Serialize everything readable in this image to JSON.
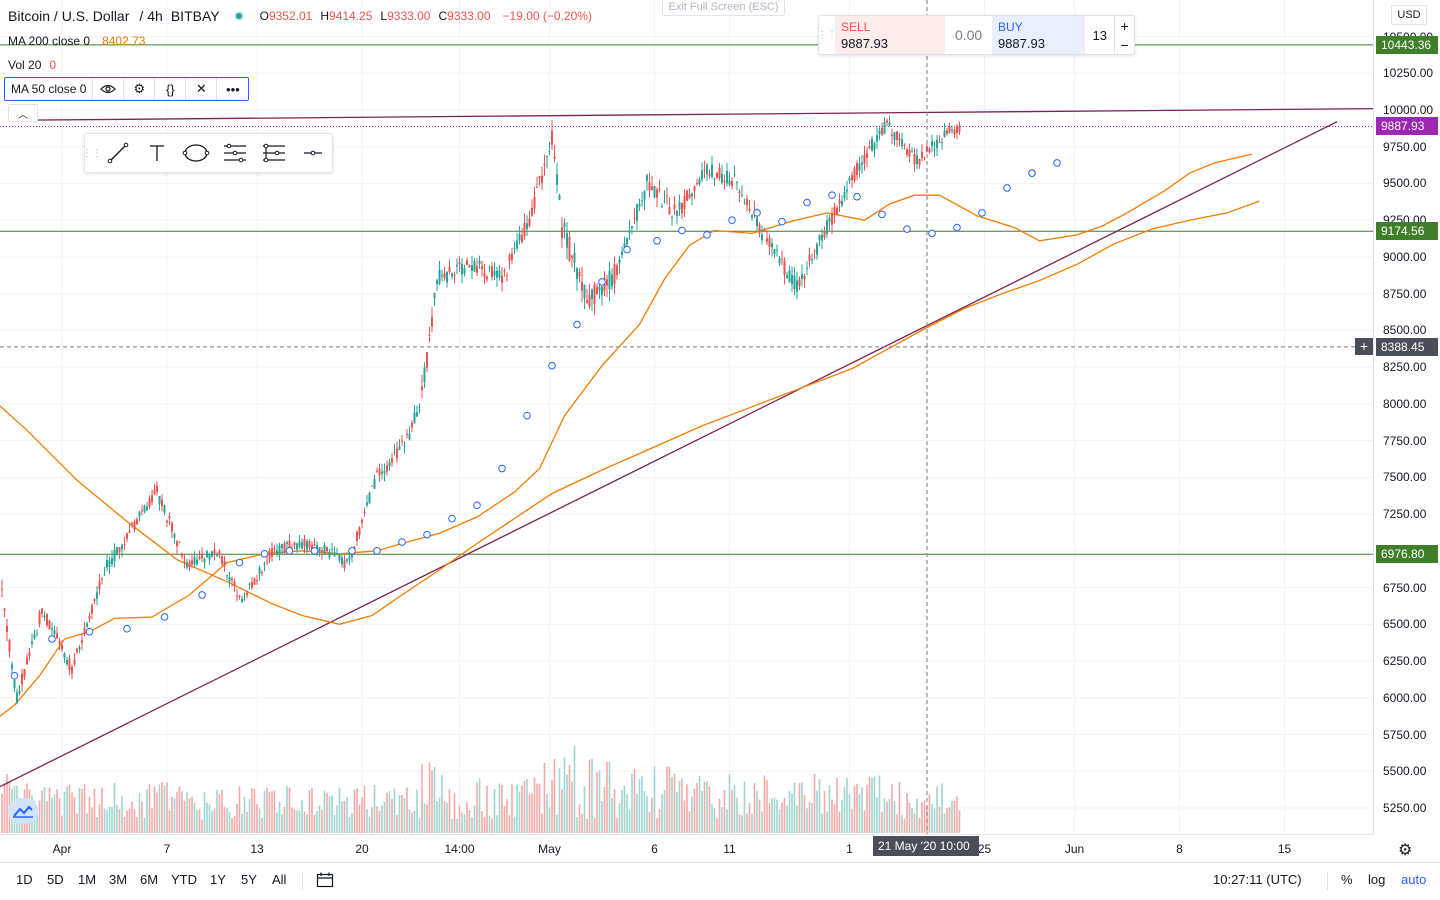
{
  "legend": {
    "symbol": "Bitcoin / U.S. Dollar",
    "interval": "4h",
    "exchange": "BITBAY",
    "ohlc": [
      {
        "k": "O",
        "v": "9352.01"
      },
      {
        "k": "H",
        "v": "9414.25"
      },
      {
        "k": "L",
        "v": "9333.00"
      },
      {
        "k": "C",
        "v": "9333.00"
      }
    ],
    "change": "−19.00 (−0.20%)",
    "ma200_label": "MA 200 close 0",
    "ma200_value": "8402.73",
    "vol_label": "Vol 20",
    "vol_value": "0",
    "ma50_label": "MA 50 close 0"
  },
  "ma50_actions": [
    "eye-icon",
    "gear-icon",
    "braces-icon",
    "close-icon",
    "more-icon"
  ],
  "draw_tools": [
    "trend-line-icon",
    "text-icon",
    "ellipse-icon",
    "fib-icon",
    "pitchfork-icon",
    "horizontal-line-icon"
  ],
  "exit_fullscreen": "Exit Full Screen (ESC)",
  "trade": {
    "sell_label": "SELL",
    "sell_price": "9887.93",
    "spread": "0.00",
    "buy_label": "BUY",
    "buy_price": "9887.93",
    "qty": "13",
    "plus": "+",
    "minus": "−"
  },
  "currency": "USD",
  "price_ticks": [
    "10500.00",
    "10250.00",
    "10000.00",
    "9750.00",
    "9500.00",
    "9250.00",
    "9000.00",
    "8750.00",
    "8500.00",
    "8250.00",
    "8000.00",
    "7750.00",
    "7500.00",
    "7250.00",
    "7000.00",
    "6750.00",
    "6500.00",
    "6250.00",
    "6000.00",
    "5750.00",
    "5500.00",
    "5250.00"
  ],
  "price_tags": [
    {
      "text": "10443.36",
      "style": "green",
      "price": 10443.36
    },
    {
      "text": "9887.93",
      "style": "purple",
      "price": 9887.93
    },
    {
      "text": "9174.56",
      "style": "green",
      "price": 9174.56
    },
    {
      "text": "8388.45",
      "style": "dark",
      "price": 8388.45
    },
    {
      "text": "6976.80",
      "style": "green",
      "price": 6976.8
    }
  ],
  "time_ticks": [
    {
      "label": "Apr",
      "index": 24
    },
    {
      "label": "7",
      "index": 66
    },
    {
      "label": "13",
      "index": 102
    },
    {
      "label": "20",
      "index": 144
    },
    {
      "label": "14:00",
      "index": 183
    },
    {
      "label": "May",
      "index": 219
    },
    {
      "label": "6",
      "index": 261
    },
    {
      "label": "11",
      "index": 291
    },
    {
      "label": "1",
      "index": 339
    },
    {
      "label": "25",
      "index": 393
    },
    {
      "label": "Jun",
      "index": 429
    },
    {
      "label": "8",
      "index": 471
    },
    {
      "label": "15",
      "index": 513
    }
  ],
  "crosshair_time": "21 May '20   10:00",
  "ranges": [
    "1D",
    "5D",
    "1M",
    "3M",
    "6M",
    "YTD",
    "1Y",
    "5Y",
    "All"
  ],
  "clock": "10:27:11 (UTC)",
  "scale_buttons": {
    "percent": "%",
    "log": "log",
    "auto": "auto"
  },
  "colors": {
    "up": "#26a69a",
    "down": "#ef5350",
    "ma": "#f57c00",
    "trendline": "#7b2450",
    "level": "#3f7f2a",
    "accent": "#2962ff"
  },
  "chart_data": {
    "type": "candlestick",
    "bar_interval": "4h",
    "price_range": [
      5100,
      10550
    ],
    "horizontal_levels": [
      10443.36,
      9174.56,
      6976.8
    ],
    "current_price_line": 9887.93,
    "crosshair_price": 8388.45,
    "resistance_line": [
      [
        4,
        9930
      ],
      [
        553,
        10010
      ]
    ],
    "support_line": [
      [
        -5,
        5360
      ],
      [
        534,
        9920
      ]
    ],
    "ma_long_path": [
      [
        -5,
        8050
      ],
      [
        10,
        7820
      ],
      [
        30,
        7480
      ],
      [
        50,
        7200
      ],
      [
        70,
        6940
      ],
      [
        90,
        6790
      ],
      [
        108,
        6640
      ],
      [
        120,
        6560
      ],
      [
        135,
        6500
      ],
      [
        148,
        6560
      ],
      [
        160,
        6700
      ],
      [
        175,
        6870
      ],
      [
        190,
        7050
      ],
      [
        205,
        7220
      ],
      [
        220,
        7390
      ],
      [
        240,
        7550
      ],
      [
        260,
        7700
      ],
      [
        280,
        7850
      ],
      [
        300,
        7980
      ],
      [
        320,
        8110
      ],
      [
        340,
        8240
      ],
      [
        355,
        8380
      ],
      [
        370,
        8520
      ],
      [
        385,
        8650
      ],
      [
        400,
        8750
      ],
      [
        415,
        8840
      ],
      [
        430,
        8950
      ],
      [
        445,
        9090
      ],
      [
        460,
        9190
      ],
      [
        475,
        9250
      ],
      [
        490,
        9300
      ],
      [
        503,
        9380
      ]
    ],
    "ma_short_path": [
      [
        -5,
        5820
      ],
      [
        5,
        5950
      ],
      [
        15,
        6150
      ],
      [
        25,
        6400
      ],
      [
        35,
        6450
      ],
      [
        45,
        6540
      ],
      [
        60,
        6550
      ],
      [
        75,
        6700
      ],
      [
        90,
        6920
      ],
      [
        105,
        6980
      ],
      [
        120,
        7000
      ],
      [
        135,
        6980
      ],
      [
        150,
        7000
      ],
      [
        160,
        7050
      ],
      [
        175,
        7120
      ],
      [
        190,
        7230
      ],
      [
        205,
        7400
      ],
      [
        215,
        7560
      ],
      [
        225,
        7920
      ],
      [
        240,
        8260
      ],
      [
        255,
        8540
      ],
      [
        265,
        8850
      ],
      [
        275,
        9080
      ],
      [
        285,
        9180
      ],
      [
        300,
        9160
      ],
      [
        315,
        9240
      ],
      [
        330,
        9300
      ],
      [
        345,
        9250
      ],
      [
        355,
        9360
      ],
      [
        365,
        9420
      ],
      [
        375,
        9420
      ],
      [
        390,
        9280
      ],
      [
        405,
        9200
      ],
      [
        415,
        9110
      ],
      [
        430,
        9150
      ],
      [
        440,
        9210
      ],
      [
        450,
        9300
      ],
      [
        465,
        9450
      ],
      [
        475,
        9570
      ],
      [
        485,
        9640
      ],
      [
        500,
        9700
      ]
    ],
    "ma_markers": [
      [
        5,
        6150
      ],
      [
        20,
        6400
      ],
      [
        35,
        6450
      ],
      [
        50,
        6470
      ],
      [
        65,
        6550
      ],
      [
        80,
        6700
      ],
      [
        95,
        6920
      ],
      [
        105,
        6980
      ],
      [
        115,
        7000
      ],
      [
        125,
        7000
      ],
      [
        140,
        7000
      ],
      [
        150,
        7000
      ],
      [
        160,
        7060
      ],
      [
        170,
        7110
      ],
      [
        180,
        7220
      ],
      [
        190,
        7310
      ],
      [
        200,
        7560
      ],
      [
        210,
        7920
      ],
      [
        220,
        8260
      ],
      [
        230,
        8540
      ],
      [
        240,
        8830
      ],
      [
        250,
        9050
      ],
      [
        262,
        9110
      ],
      [
        272,
        9180
      ],
      [
        282,
        9150
      ],
      [
        292,
        9250
      ],
      [
        302,
        9300
      ],
      [
        312,
        9240
      ],
      [
        322,
        9370
      ],
      [
        332,
        9420
      ],
      [
        342,
        9410
      ],
      [
        352,
        9290
      ],
      [
        362,
        9190
      ],
      [
        372,
        9160
      ],
      [
        382,
        9200
      ],
      [
        392,
        9300
      ],
      [
        402,
        9470
      ],
      [
        412,
        9570
      ],
      [
        422,
        9640
      ]
    ],
    "segments": [
      {
        "n": 6,
        "start": 6700,
        "end": 6000,
        "vol": 0.6
      },
      {
        "n": 10,
        "start": 6000,
        "end": 6600,
        "vol": 0.5
      },
      {
        "n": 12,
        "start": 6600,
        "end": 6200,
        "vol": 0.5
      },
      {
        "n": 14,
        "start": 6200,
        "end": 6900,
        "vol": 0.5
      },
      {
        "n": 12,
        "start": 6900,
        "end": 7200,
        "vol": 0.5
      },
      {
        "n": 8,
        "start": 7200,
        "end": 7400,
        "vol": 0.5
      },
      {
        "n": 12,
        "start": 7400,
        "end": 6900,
        "vol": 0.5
      },
      {
        "n": 12,
        "start": 6900,
        "end": 7000,
        "vol": 0.45
      },
      {
        "n": 10,
        "start": 7000,
        "end": 6650,
        "vol": 0.45
      },
      {
        "n": 12,
        "start": 6650,
        "end": 7000,
        "vol": 0.45
      },
      {
        "n": 12,
        "start": 7000,
        "end": 7050,
        "vol": 0.45
      },
      {
        "n": 10,
        "start": 7050,
        "end": 7000,
        "vol": 0.45
      },
      {
        "n": 8,
        "start": 7000,
        "end": 6900,
        "vol": 0.45
      },
      {
        "n": 12,
        "start": 6900,
        "end": 7500,
        "vol": 0.5
      },
      {
        "n": 12,
        "start": 7500,
        "end": 7750,
        "vol": 0.5
      },
      {
        "n": 6,
        "start": 7750,
        "end": 8050,
        "vol": 0.5
      },
      {
        "n": 6,
        "start": 8050,
        "end": 8850,
        "vol": 0.8
      },
      {
        "n": 14,
        "start": 8850,
        "end": 8950,
        "vol": 0.6
      },
      {
        "n": 12,
        "start": 8950,
        "end": 8850,
        "vol": 0.6
      },
      {
        "n": 12,
        "start": 8850,
        "end": 9300,
        "vol": 0.6
      },
      {
        "n": 8,
        "start": 9300,
        "end": 9800,
        "vol": 0.8
      },
      {
        "n": 4,
        "start": 9800,
        "end": 9200,
        "vol": 0.8
      },
      {
        "n": 10,
        "start": 9200,
        "end": 8700,
        "vol": 1.0
      },
      {
        "n": 12,
        "start": 8700,
        "end": 8900,
        "vol": 0.8
      },
      {
        "n": 12,
        "start": 8900,
        "end": 9500,
        "vol": 0.7
      },
      {
        "n": 12,
        "start": 9500,
        "end": 9300,
        "vol": 0.7
      },
      {
        "n": 12,
        "start": 9300,
        "end": 9600,
        "vol": 0.6
      },
      {
        "n": 12,
        "start": 9600,
        "end": 9500,
        "vol": 0.6
      },
      {
        "n": 12,
        "start": 9500,
        "end": 9100,
        "vol": 0.6
      },
      {
        "n": 12,
        "start": 9100,
        "end": 8800,
        "vol": 0.6
      },
      {
        "n": 12,
        "start": 8800,
        "end": 9200,
        "vol": 0.6
      },
      {
        "n": 12,
        "start": 9200,
        "end": 9600,
        "vol": 0.6
      },
      {
        "n": 12,
        "start": 9600,
        "end": 9900,
        "vol": 0.6
      },
      {
        "n": 12,
        "start": 9900,
        "end": 9650,
        "vol": 0.5
      },
      {
        "n": 12,
        "start": 9650,
        "end": 9850,
        "vol": 0.5
      },
      {
        "n": 6,
        "start": 9850,
        "end": 9870,
        "vol": 0.4
      }
    ]
  }
}
